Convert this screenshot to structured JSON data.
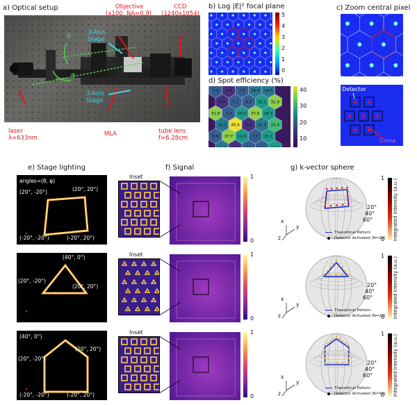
{
  "panel_a": {
    "title": "a) Optical setup",
    "labels": {
      "laser": "laser",
      "laser_wl": "λ=633nm",
      "objective": "Objective",
      "objective_spec": "(x100, NA=0.9)",
      "ccd": "CCD",
      "ccd_spec": "(1240x1054)",
      "mla": "MLA",
      "tube_lens": "tube lens",
      "tube_lens_f": "f=6.28cm",
      "stage_top_1": "3-Axis",
      "stage_top_2": "Stage",
      "stage_bot_1": "3-Axis",
      "stage_bot_2": "Stage",
      "theta": "θ",
      "phi": "φ"
    }
  },
  "panel_b": {
    "title": "b) Log |E|² focal plane",
    "colorbar_ticks": [
      "5",
      "4",
      "3",
      "2",
      "1",
      "0"
    ]
  },
  "panel_c": {
    "title": "c) Zoom central pixel",
    "labels": {
      "detector": "Detector",
      "coma": "Coma"
    }
  },
  "panel_d": {
    "title": "d) Spot efficiency (%)",
    "colorbar_ticks": [
      "40",
      "30",
      "20",
      "10"
    ],
    "cells": [
      "7.2",
      "4.9",
      "7.3",
      "14.4",
      "14.5",
      "6.9",
      "7.1",
      "9.3",
      "15.1",
      "31.9",
      "31.8",
      "7.3",
      "19.0",
      "37.6",
      "16.3",
      "10.1",
      "45.6",
      "5.4",
      "12.3",
      "25.4",
      "8.9",
      "37.7",
      "19.3",
      "7.7",
      "15.1",
      "14.9",
      "4.5",
      "7.6",
      "8.2",
      "16.3",
      "4.7"
    ]
  },
  "panel_e": {
    "title": "e) Stage lighting",
    "angles_label": "angles=(θ, φ)",
    "rows": [
      {
        "labels": [
          "(20°, -20°)",
          "(20°, 20°)",
          "(-20°, -20°)",
          "(-20°, 20°)"
        ]
      },
      {
        "labels": [
          "(40°, 0°)",
          "(20°, -20°)",
          "(20°, 20°)"
        ]
      },
      {
        "labels": [
          "(40°, 0°)",
          "(20°, -20°)",
          "(20°, 20°)",
          "(-20°, -20°)",
          "(-20°, 20°)"
        ]
      }
    ]
  },
  "panel_f": {
    "title": "f) Signal",
    "inset_label": "Inset",
    "colorbar_ticks": [
      "1",
      "0"
    ]
  },
  "panel_g": {
    "title": "g) k-vector sphere",
    "angle_ticks": [
      "20°",
      "40°",
      "60°"
    ],
    "axes": {
      "x": "x",
      "y": "y",
      "z": "z"
    },
    "colorbar_label": "Integrated Intensity (a.u.)",
    "colorbar_ticks": [
      "1",
      "0"
    ],
    "legend_theory": "Theoretical Pattern",
    "legend_detectors": [
      "Detector Activated (N=29)",
      "Detector Activated (N=23)",
      "Detector Activated (N=52)"
    ]
  }
}
